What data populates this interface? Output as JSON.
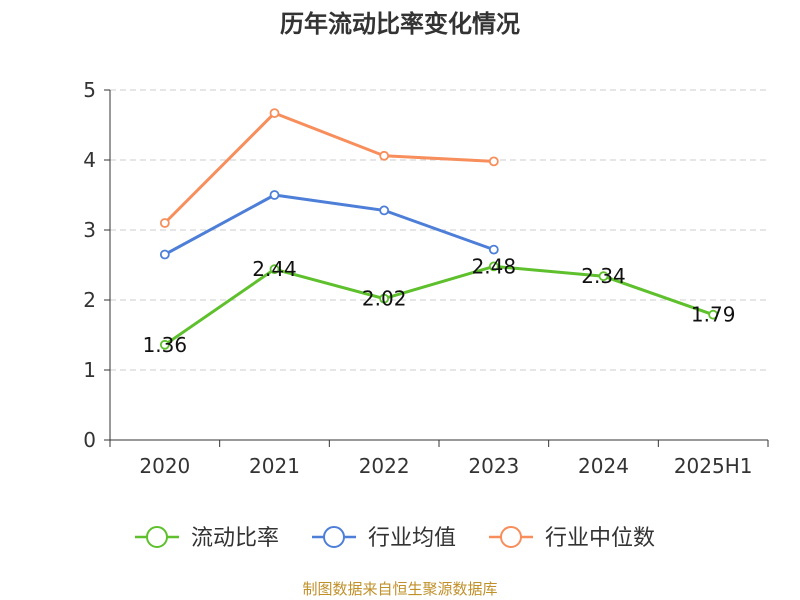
{
  "chart_data": {
    "type": "line",
    "title": "历年流动比率变化情况",
    "categories": [
      "2020",
      "2021",
      "2022",
      "2023",
      "2024",
      "2025H1"
    ],
    "ylim": [
      0,
      5
    ],
    "yticks": [
      0,
      1,
      2,
      3,
      4,
      5
    ],
    "grid": true,
    "legend_position": "bottom",
    "series": [
      {
        "name": "流动比率",
        "color": "#5ec02c",
        "values": [
          1.36,
          2.44,
          2.02,
          2.48,
          2.34,
          1.79
        ],
        "labels": [
          "1.36",
          "2.44",
          "2.02",
          "2.48",
          "2.34",
          "1.79"
        ]
      },
      {
        "name": "行业均值",
        "color": "#4e7fd8",
        "values": [
          2.65,
          3.5,
          3.28,
          2.72,
          null,
          null
        ]
      },
      {
        "name": "行业中位数",
        "color": "#f78e5b",
        "values": [
          3.1,
          4.67,
          4.06,
          3.98,
          null,
          null
        ]
      }
    ]
  },
  "source_note": "制图数据来自恒生聚源数据库"
}
